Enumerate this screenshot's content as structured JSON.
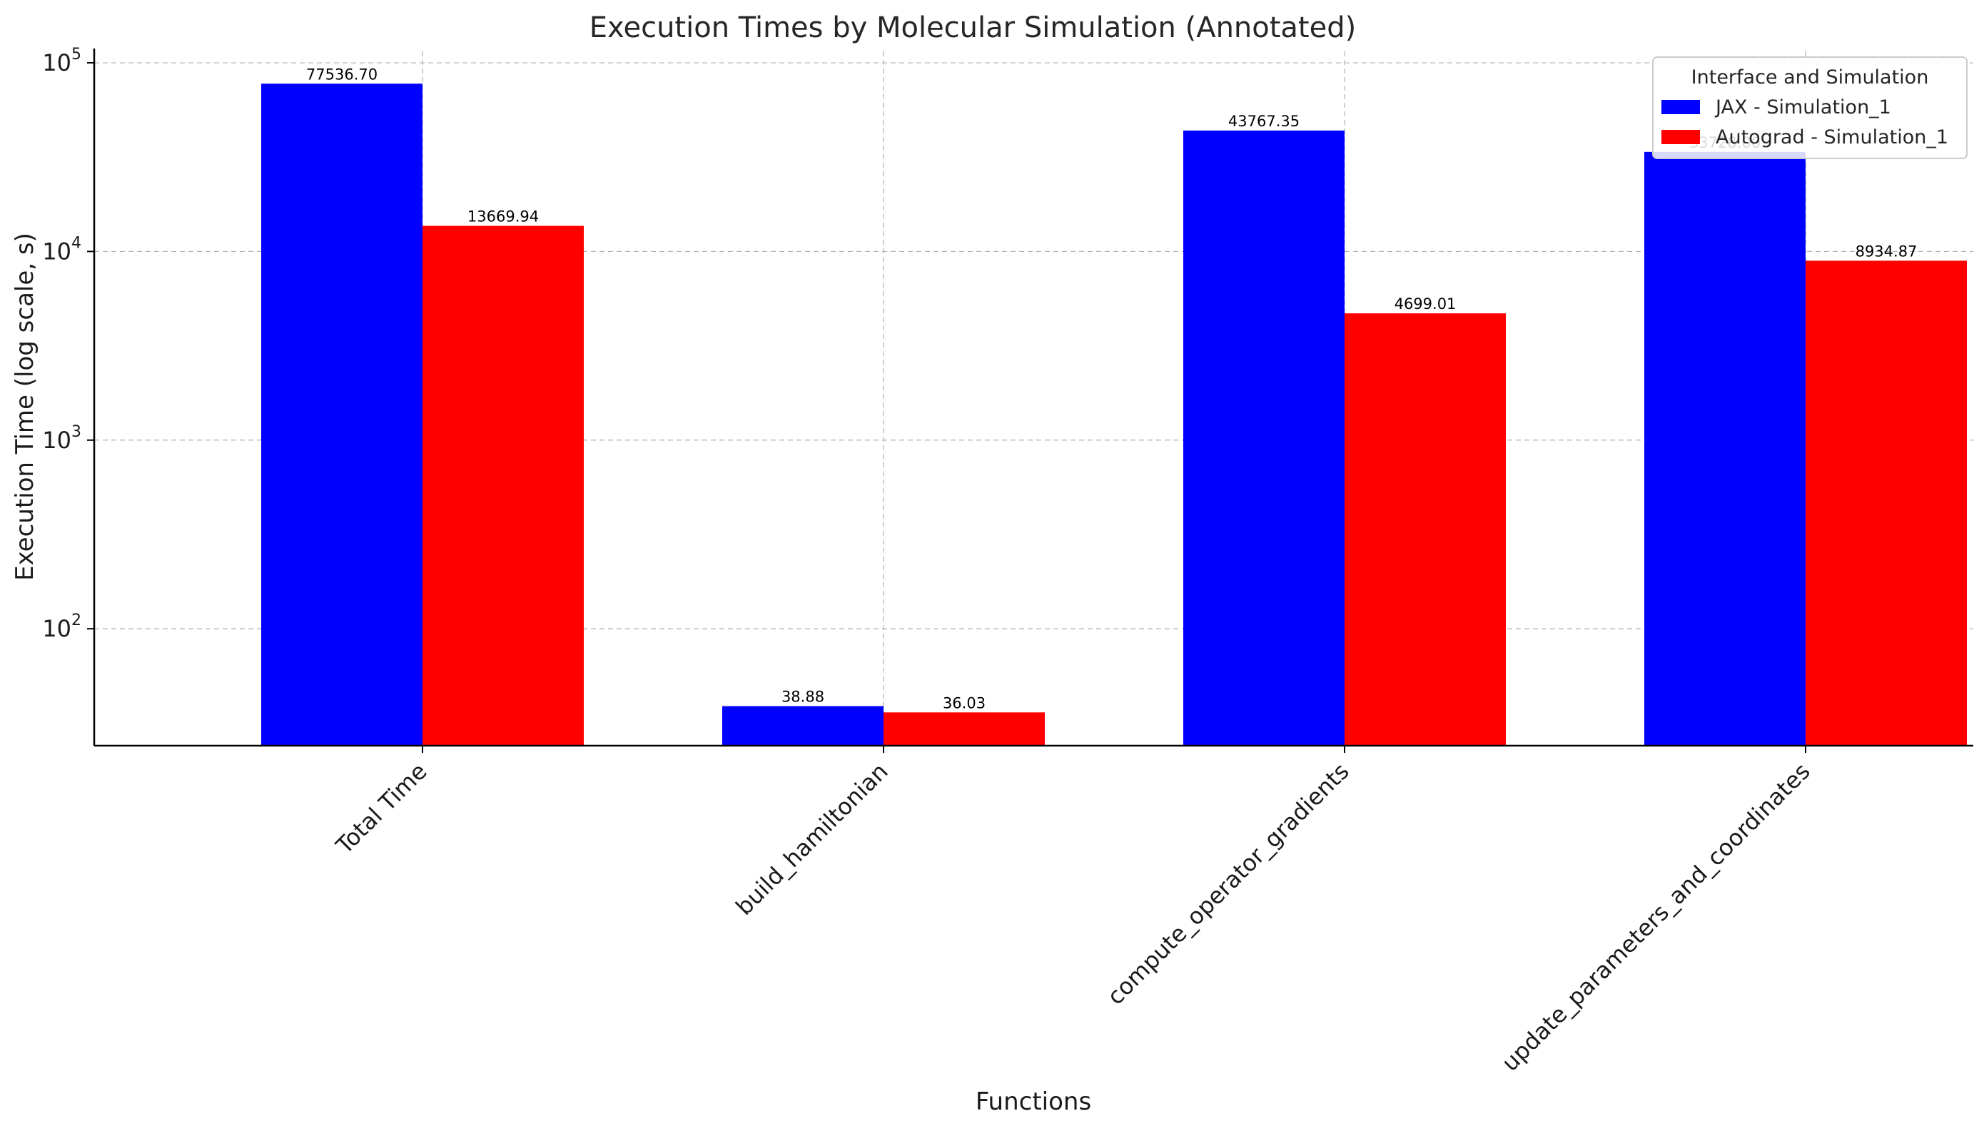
{
  "chart_data": {
    "type": "bar",
    "title": "Execution Times by Molecular Simulation (Annotated)",
    "xlabel": "Functions",
    "ylabel": "Execution Time (log scale, s)",
    "yscale": "log",
    "ylim": [
      24,
      115000
    ],
    "yticks": [
      {
        "value": 100,
        "base": "10",
        "exp": "2"
      },
      {
        "value": 1000,
        "base": "10",
        "exp": "3"
      },
      {
        "value": 10000,
        "base": "10",
        "exp": "4"
      },
      {
        "value": 100000,
        "base": "10",
        "exp": "5"
      }
    ],
    "grid": true,
    "legend_title": "Interface and Simulation",
    "legend_position": "top-right",
    "categories": [
      "Total Time",
      "build_hamiltonian",
      "compute_operator_gradients",
      "update_parameters_and_coordinates"
    ],
    "series": [
      {
        "name": "JAX - Simulation_1",
        "color": "#0000ff",
        "values": [
          77536.7,
          38.88,
          43767.35,
          33728.0
        ],
        "labels": [
          "77536.70",
          "38.88",
          "43767.35",
          "33728.00"
        ]
      },
      {
        "name": "Autograd - Simulation_1",
        "color": "#ff0000",
        "values": [
          13669.94,
          36.03,
          4699.01,
          8934.87
        ],
        "labels": [
          "13669.94",
          "36.03",
          "4699.01",
          "8934.87"
        ]
      }
    ]
  }
}
